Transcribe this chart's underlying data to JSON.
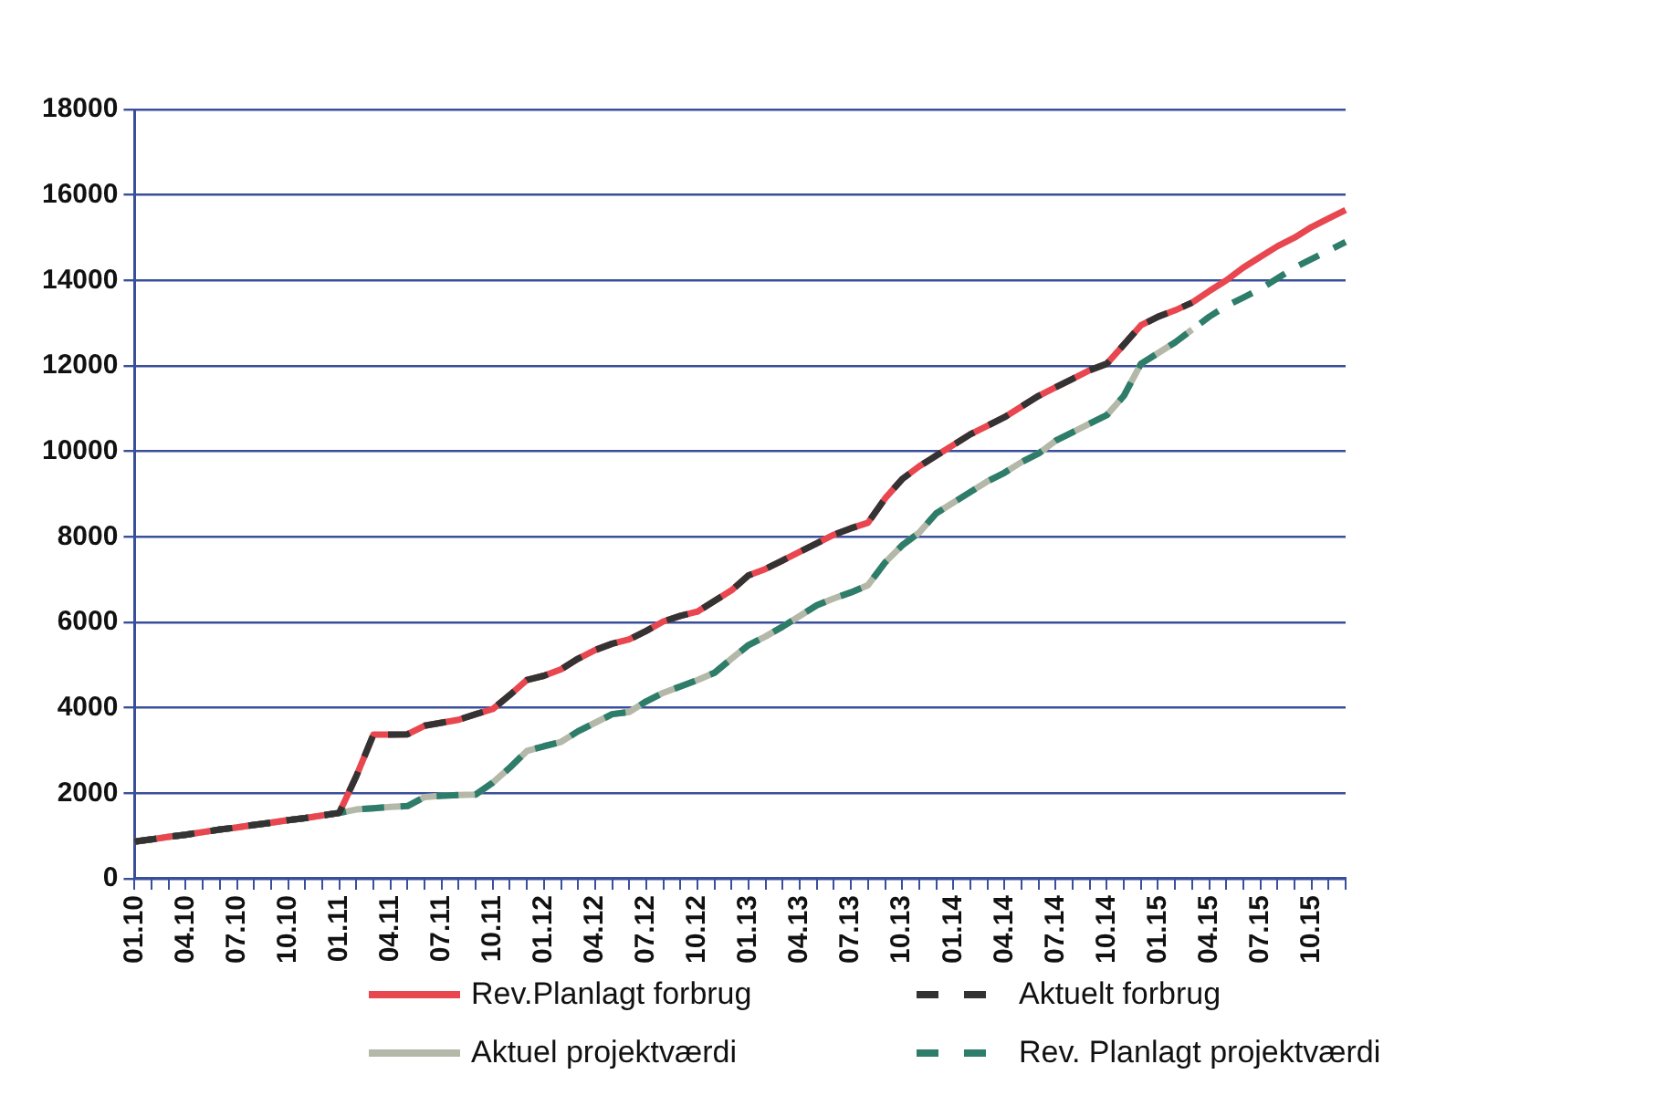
{
  "chart_data": {
    "type": "line",
    "categories": [
      "01.10",
      null,
      null,
      "04.10",
      null,
      null,
      "07.10",
      null,
      null,
      "10.10",
      null,
      null,
      "01.11",
      null,
      null,
      "04.11",
      null,
      null,
      "07.11",
      null,
      null,
      "10.11",
      null,
      null,
      "01.12",
      null,
      null,
      "04.12",
      null,
      null,
      "07.12",
      null,
      null,
      "10.12",
      null,
      null,
      "01.13",
      null,
      null,
      "04.13",
      null,
      null,
      "07.13",
      null,
      null,
      "10.13",
      null,
      null,
      "01.14",
      null,
      null,
      "04.14",
      null,
      null,
      "07.14",
      null,
      null,
      "10.14",
      null,
      null,
      "01.15",
      null,
      null,
      "04.15",
      null,
      null,
      "07.15",
      null,
      null,
      "10.15",
      null,
      null
    ],
    "ylim": [
      0,
      18000
    ],
    "yticks": [
      0,
      2000,
      4000,
      6000,
      8000,
      10000,
      12000,
      14000,
      16000,
      18000
    ],
    "grid": "y",
    "legend": "bottom",
    "marker": "none",
    "series": [
      {
        "name": "Rev.Planlagt forbrug",
        "color": "#e8474f",
        "line_style": "solid",
        "values": [
          870,
          920,
          980,
          1030,
          1090,
          1150,
          1200,
          1260,
          1310,
          1370,
          1420,
          1480,
          1540,
          2400,
          3370,
          3370,
          3380,
          3580,
          3650,
          3720,
          3850,
          3970,
          4300,
          4650,
          4750,
          4900,
          5150,
          5350,
          5500,
          5600,
          5800,
          6020,
          6150,
          6250,
          6500,
          6750,
          7100,
          7250,
          7450,
          7650,
          7850,
          8050,
          8200,
          8330,
          8900,
          9350,
          9650,
          9900,
          10150,
          10400,
          10600,
          10800,
          11050,
          11300,
          11500,
          11700,
          11900,
          12050,
          12500,
          12950,
          13150,
          13300,
          13480,
          13750,
          14000,
          14300,
          14550,
          14800,
          15000,
          15250,
          15450,
          15650
        ]
      },
      {
        "name": "Aktuelt forbrug",
        "color": "#333333",
        "line_style": "dashed",
        "values": [
          870,
          920,
          980,
          1030,
          1090,
          1150,
          1200,
          1260,
          1310,
          1370,
          1420,
          1480,
          1540,
          2400,
          3370,
          3370,
          3380,
          3580,
          3650,
          3720,
          3850,
          3970,
          4300,
          4650,
          4750,
          4900,
          5150,
          5350,
          5500,
          5600,
          5800,
          6020,
          6150,
          6250,
          6500,
          6750,
          7100,
          7250,
          7450,
          7650,
          7850,
          8050,
          8200,
          8330,
          8900,
          9350,
          9650,
          9900,
          10150,
          10400,
          10600,
          10800,
          11050,
          11300,
          11500,
          11700,
          11900,
          12050,
          12500,
          12950,
          13150,
          13300,
          13480,
          null,
          null,
          null,
          null,
          null,
          null,
          null,
          null,
          null
        ]
      },
      {
        "name": "Aktuel projektværdi",
        "color": "#b4b8a8",
        "line_style": "solid",
        "values": [
          870,
          920,
          980,
          1030,
          1090,
          1150,
          1200,
          1260,
          1310,
          1370,
          1420,
          1480,
          1540,
          1620,
          1650,
          1680,
          1700,
          1910,
          1940,
          1960,
          1970,
          2250,
          2600,
          2990,
          3100,
          3200,
          3450,
          3650,
          3850,
          3900,
          4150,
          4350,
          4500,
          4650,
          4820,
          5150,
          5470,
          5670,
          5900,
          6150,
          6400,
          6560,
          6700,
          6870,
          7400,
          7800,
          8100,
          8550,
          8800,
          9050,
          9300,
          9500,
          9750,
          9950,
          10250,
          10450,
          10650,
          10850,
          11300,
          12050,
          12300,
          12550,
          12850,
          null,
          null,
          null,
          null,
          null,
          null,
          null,
          null,
          null
        ]
      },
      {
        "name": "Rev. Planlagt projektværdi",
        "color": "#2e7d6a",
        "line_style": "dashed",
        "values": [
          870,
          920,
          980,
          1030,
          1090,
          1150,
          1200,
          1260,
          1310,
          1370,
          1420,
          1480,
          1540,
          1620,
          1650,
          1680,
          1700,
          1910,
          1940,
          1960,
          1970,
          2250,
          2600,
          2990,
          3100,
          3200,
          3450,
          3650,
          3850,
          3900,
          4150,
          4350,
          4500,
          4650,
          4820,
          5150,
          5470,
          5670,
          5900,
          6150,
          6400,
          6560,
          6700,
          6870,
          7400,
          7800,
          8100,
          8550,
          8800,
          9050,
          9300,
          9500,
          9750,
          9950,
          10250,
          10450,
          10650,
          10850,
          11300,
          12050,
          12300,
          12550,
          12850,
          13150,
          13400,
          13600,
          13800,
          14050,
          14300,
          14500,
          14700,
          14900
        ]
      }
    ]
  }
}
